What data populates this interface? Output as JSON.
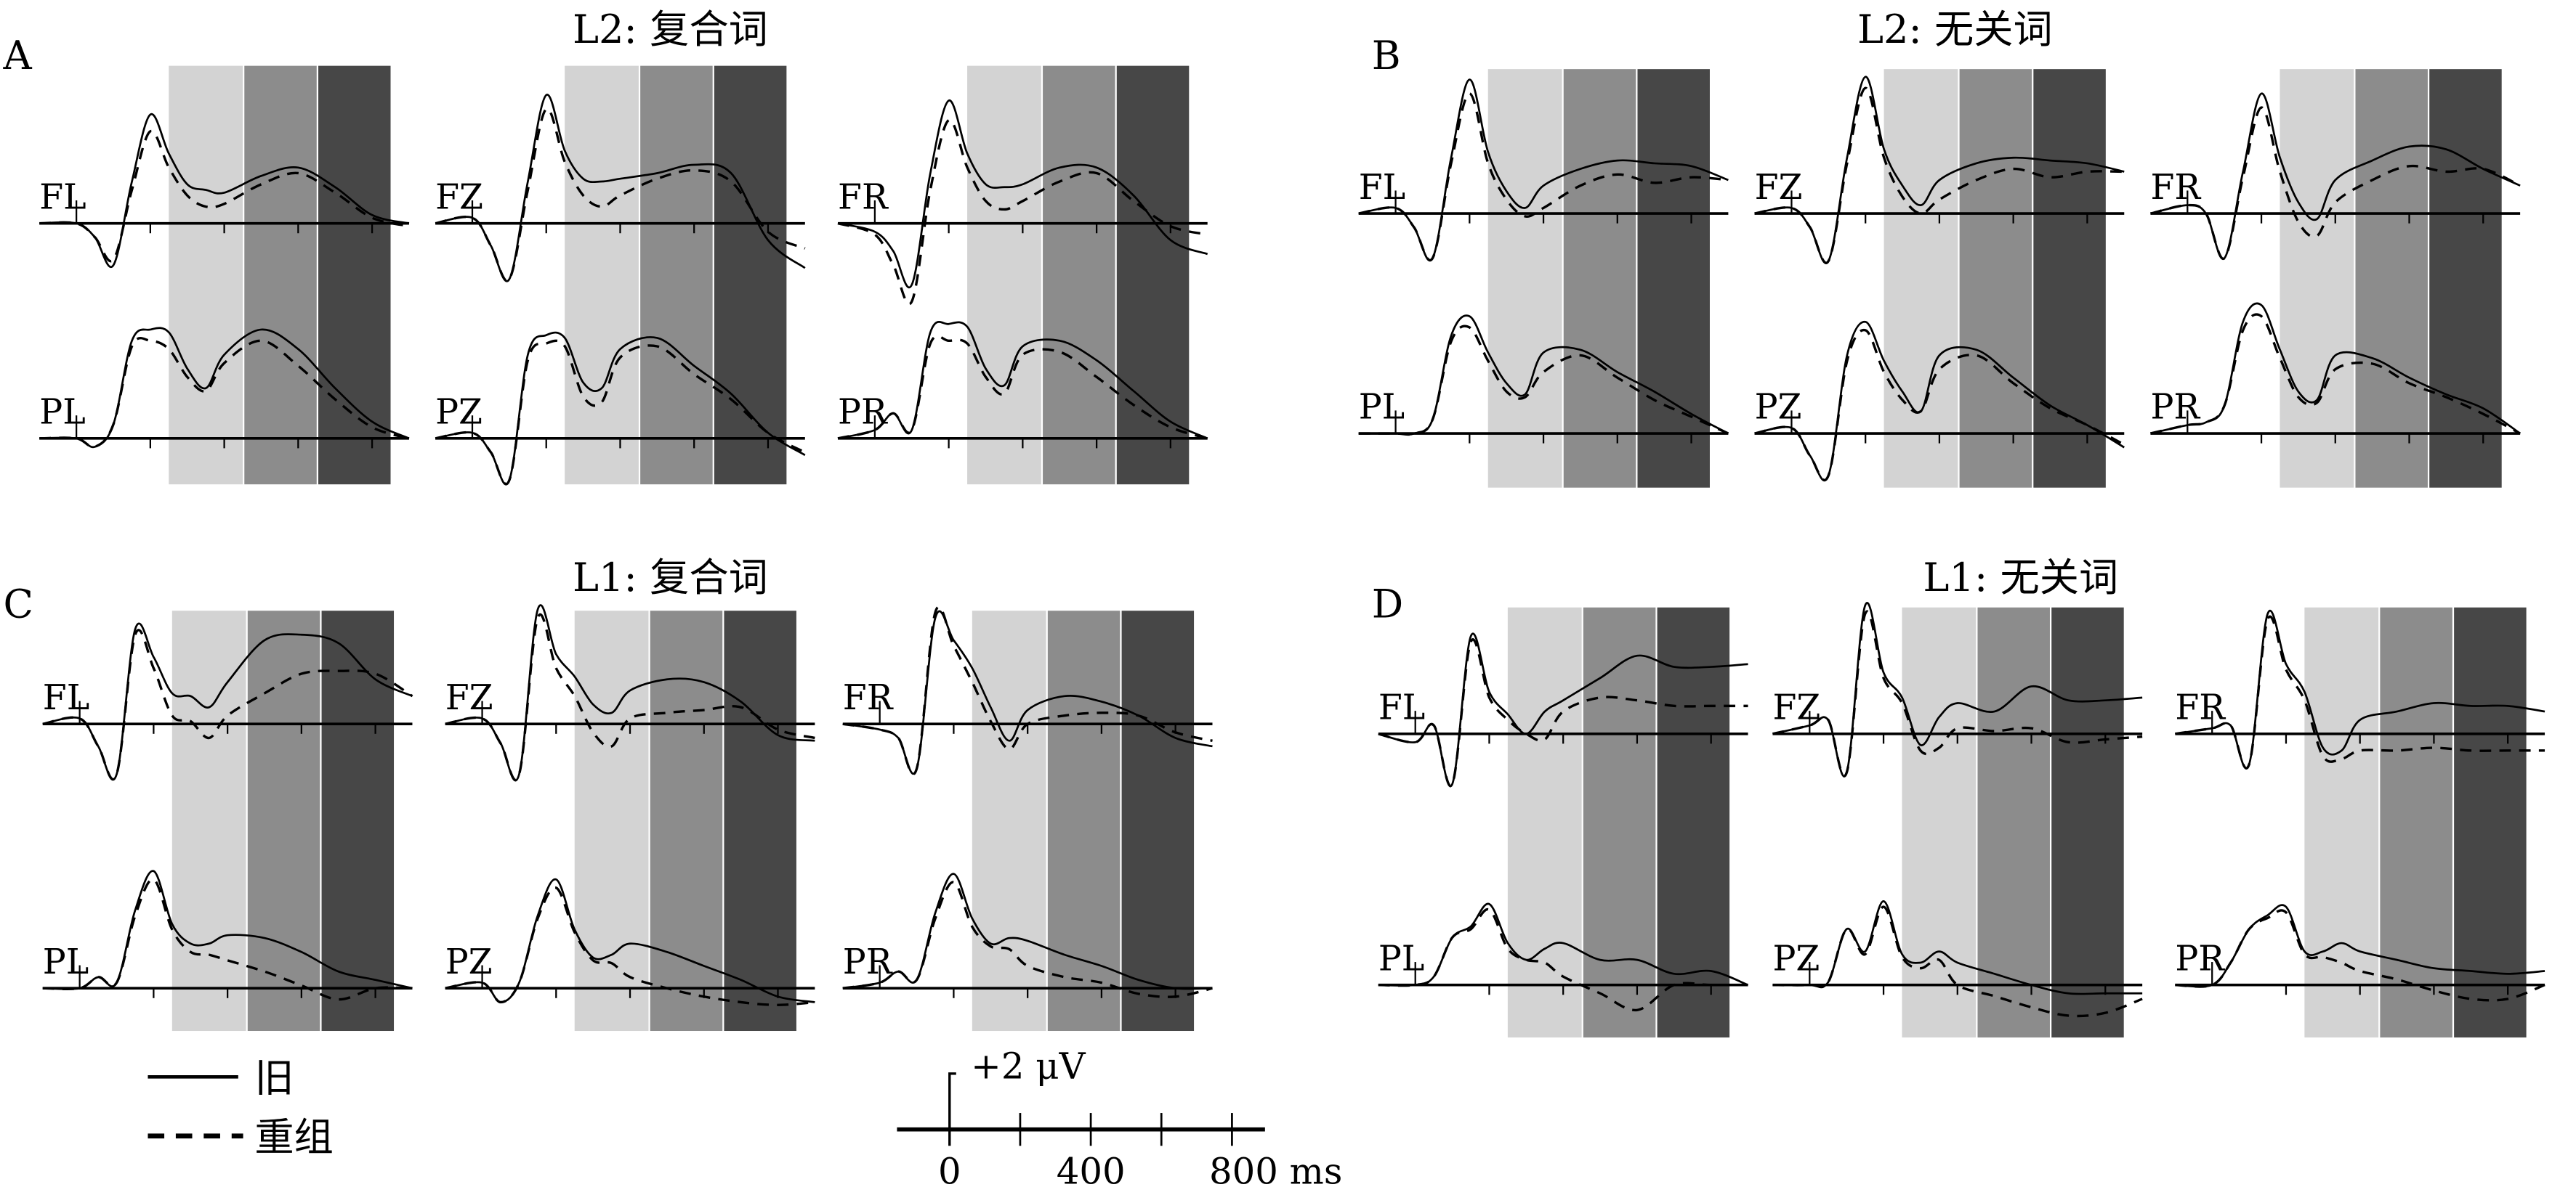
{
  "chart_data": {
    "type": "line",
    "x_unit": "ms",
    "y_unit": "μV",
    "xlim": [
      -100,
      900
    ],
    "time_ms": [
      -100,
      0,
      50,
      100,
      150,
      200,
      250,
      300,
      350,
      400,
      500,
      600,
      700,
      800,
      900
    ],
    "windows_ms": [
      [
        250,
        450
      ],
      [
        450,
        650
      ],
      [
        650,
        850
      ]
    ],
    "window_colors": [
      "#d3d3d3",
      "#8c8c8c",
      "#474747"
    ],
    "legend": [
      {
        "label": "旧",
        "style": "solid"
      },
      {
        "label": "重组",
        "style": "dashed"
      }
    ],
    "scale_bar": {
      "amplitude_label": "+2 μV",
      "amplitude_uv": 2,
      "ticks_ms": [
        0,
        200,
        400,
        600,
        800
      ],
      "tick_labels": [
        "0",
        "400",
        "800 ms"
      ]
    },
    "panels": [
      {
        "letter": "A",
        "title": "L2: 复合词",
        "electrodes": [
          {
            "name": "FL",
            "old": [
              0,
              0,
              -0.5,
              -1.5,
              1.5,
              3.9,
              2.5,
              1.4,
              1.2,
              1.1,
              1.7,
              2.0,
              1.3,
              0.3,
              0
            ],
            "recombined": [
              0,
              0,
              -0.5,
              -1.3,
              1.2,
              3.3,
              2.0,
              1.0,
              0.6,
              0.7,
              1.4,
              1.8,
              1.1,
              0.2,
              -0.1
            ]
          },
          {
            "name": "FZ",
            "old": [
              0,
              0.2,
              -0.8,
              -2.0,
              1.5,
              4.6,
              2.6,
              1.6,
              1.5,
              1.6,
              1.8,
              2.1,
              1.8,
              -0.6,
              -1.6
            ],
            "recombined": [
              0,
              0.2,
              -0.8,
              -2.0,
              1.2,
              4.1,
              2.2,
              1.0,
              0.6,
              1.0,
              1.6,
              1.9,
              1.5,
              -0.3,
              -0.9
            ]
          },
          {
            "name": "FR",
            "old": [
              0,
              -0.3,
              -1.0,
              -2.2,
              1.8,
              4.4,
              2.5,
              1.4,
              1.3,
              1.4,
              2.0,
              2.0,
              1.0,
              -0.6,
              -1.1
            ],
            "recombined": [
              0,
              -0.4,
              -1.5,
              -2.8,
              1.2,
              3.7,
              2.0,
              0.8,
              0.5,
              0.8,
              1.5,
              1.8,
              0.8,
              -0.1,
              -0.4
            ]
          },
          {
            "name": "PL",
            "old": [
              0,
              0,
              -0.3,
              0.5,
              3.5,
              3.9,
              3.8,
              2.5,
              1.8,
              3.0,
              3.9,
              3.2,
              1.8,
              0.6,
              0
            ],
            "recombined": [
              0,
              0,
              -0.3,
              0.5,
              3.3,
              3.5,
              3.2,
              2.2,
              1.7,
              2.7,
              3.5,
              2.6,
              1.4,
              0.4,
              0
            ]
          },
          {
            "name": "PZ",
            "old": [
              0,
              0.2,
              -0.5,
              -1.5,
              3.0,
              3.7,
              3.6,
              2.0,
              1.8,
              3.2,
              3.6,
              2.6,
              1.6,
              0.2,
              -0.6
            ],
            "recombined": [
              0,
              0.2,
              -0.5,
              -1.5,
              2.8,
              3.4,
              3.3,
              1.5,
              1.3,
              2.9,
              3.3,
              2.3,
              1.4,
              0.2,
              -0.5
            ]
          },
          {
            "name": "PR",
            "old": [
              0,
              0.3,
              0.9,
              0.3,
              3.8,
              4.1,
              4.0,
              2.5,
              1.9,
              3.3,
              3.5,
              2.8,
              1.7,
              0.6,
              0
            ],
            "recombined": [
              0,
              0.3,
              0.9,
              0.3,
              3.4,
              3.5,
              3.4,
              2.2,
              1.6,
              3.0,
              3.1,
              2.2,
              1.2,
              0.4,
              0
            ]
          }
        ]
      },
      {
        "letter": "B",
        "title": "L2: 无关词",
        "electrodes": [
          {
            "name": "FL",
            "old": [
              0,
              0.2,
              -0.5,
              -1.6,
              2.0,
              4.8,
              2.2,
              0.8,
              0.2,
              1.0,
              1.6,
              1.9,
              1.8,
              1.7,
              1.2
            ],
            "recombined": [
              0,
              0.2,
              -0.5,
              -1.6,
              1.8,
              4.3,
              1.8,
              0.5,
              -0.1,
              0.2,
              1.0,
              1.4,
              1.1,
              1.3,
              1.2
            ]
          },
          {
            "name": "FZ",
            "old": [
              0,
              0.2,
              -0.5,
              -1.7,
              2.0,
              4.9,
              2.3,
              1.0,
              0.3,
              1.2,
              1.8,
              2.0,
              1.9,
              1.8,
              1.5
            ],
            "recombined": [
              0,
              0.2,
              -0.5,
              -1.7,
              1.8,
              4.5,
              2.0,
              0.6,
              0,
              0.5,
              1.2,
              1.6,
              1.3,
              1.5,
              1.5
            ]
          },
          {
            "name": "FR",
            "old": [
              0,
              0.3,
              0,
              -1.6,
              1.5,
              4.3,
              2.0,
              0.4,
              -0.2,
              1.2,
              1.9,
              2.4,
              2.3,
              1.6,
              1.0
            ],
            "recombined": [
              0,
              0.3,
              0,
              -1.6,
              1.3,
              3.8,
              1.5,
              -0.3,
              -0.8,
              0.4,
              1.2,
              1.7,
              1.5,
              1.6,
              1.0
            ]
          },
          {
            "name": "PL",
            "old": [
              0,
              0,
              0,
              0.5,
              3.5,
              4.2,
              2.9,
              1.8,
              1.4,
              2.9,
              3.0,
              2.2,
              1.5,
              0.7,
              0
            ],
            "recombined": [
              0,
              0,
              0,
              0.5,
              3.3,
              3.8,
              2.6,
              1.5,
              1.3,
              2.2,
              2.8,
              2.0,
              1.2,
              0.6,
              0
            ]
          },
          {
            "name": "PZ",
            "old": [
              0,
              0.2,
              -0.8,
              -1.5,
              2.8,
              4.0,
              2.6,
              1.5,
              0.8,
              2.8,
              3.0,
              2.0,
              1.0,
              0.3,
              -0.5
            ],
            "recombined": [
              0,
              0.2,
              -0.8,
              -1.5,
              2.6,
              3.7,
              2.2,
              1.2,
              0.8,
              2.3,
              2.8,
              1.8,
              0.9,
              0.3,
              -0.4
            ]
          },
          {
            "name": "PR",
            "old": [
              0,
              0.3,
              0.4,
              1.0,
              4.0,
              4.6,
              3.0,
              1.5,
              1.2,
              2.8,
              2.7,
              2.0,
              1.4,
              0.9,
              0
            ],
            "recombined": [
              0,
              0.3,
              0.4,
              1.0,
              3.7,
              4.2,
              2.7,
              1.3,
              1.1,
              2.3,
              2.5,
              1.8,
              1.3,
              0.7,
              0
            ]
          }
        ]
      },
      {
        "letter": "C",
        "title": "L1: 复合词",
        "electrodes": [
          {
            "name": "FL",
            "old": [
              0,
              0.2,
              -0.8,
              -1.8,
              3.4,
              2.4,
              1.1,
              1.0,
              0.6,
              1.5,
              3.0,
              3.2,
              2.9,
              1.6,
              1.0
            ],
            "recombined": [
              0,
              0.2,
              -0.8,
              -1.8,
              3.2,
              2.0,
              0.3,
              0.1,
              -0.5,
              0.3,
              1.1,
              1.8,
              1.9,
              1.8,
              1.0
            ]
          },
          {
            "name": "FZ",
            "old": [
              0,
              0.2,
              -0.7,
              -1.8,
              4.1,
              2.5,
              1.7,
              0.7,
              0.4,
              1.2,
              1.6,
              1.5,
              0.8,
              -0.4,
              -0.6
            ],
            "recombined": [
              0,
              0.2,
              -0.7,
              -1.8,
              3.8,
              2.0,
              1.0,
              -0.3,
              -0.8,
              0.2,
              0.4,
              0.5,
              0.6,
              -0.2,
              -0.5
            ]
          },
          {
            "name": "FR",
            "old": [
              0,
              -0.2,
              -0.5,
              -1.6,
              3.8,
              3.0,
              2.0,
              0.6,
              -0.6,
              0.5,
              1.0,
              0.8,
              0.3,
              -0.5,
              -0.8
            ],
            "recombined": [
              0,
              -0.2,
              -0.5,
              -1.6,
              4.0,
              2.8,
              1.5,
              0.1,
              -0.9,
              0,
              0.3,
              0.4,
              0.3,
              -0.3,
              -0.6
            ]
          },
          {
            "name": "PL",
            "old": [
              0,
              0,
              0.4,
              0.2,
              2.8,
              4.2,
              2.3,
              1.6,
              1.6,
              1.9,
              1.8,
              1.3,
              0.6,
              0.3,
              0
            ],
            "recombined": [
              0,
              0,
              0.4,
              0.2,
              2.6,
              3.9,
              2.1,
              1.3,
              1.2,
              1.0,
              0.6,
              0.1,
              -0.4,
              0,
              0
            ]
          },
          {
            "name": "PZ",
            "old": [
              0,
              0.2,
              -0.5,
              0.2,
              2.6,
              3.9,
              2.1,
              1.1,
              1.2,
              1.6,
              1.3,
              0.8,
              0.3,
              -0.3,
              -0.5
            ],
            "recombined": [
              0,
              0.2,
              -0.5,
              0.2,
              2.5,
              3.6,
              2.0,
              1.0,
              0.9,
              0.4,
              0,
              -0.3,
              -0.5,
              -0.6,
              -0.5
            ]
          },
          {
            "name": "PR",
            "old": [
              0,
              0.2,
              0.6,
              0.3,
              2.7,
              4.1,
              2.5,
              1.6,
              1.8,
              1.7,
              1.2,
              0.8,
              0.3,
              0,
              0
            ],
            "recombined": [
              0,
              0.2,
              0.6,
              0.3,
              2.5,
              3.8,
              2.2,
              1.5,
              1.4,
              0.8,
              0.4,
              0.2,
              -0.2,
              -0.3,
              0
            ]
          }
        ]
      },
      {
        "letter": "D",
        "title": "L1: 无关词",
        "electrodes": [
          {
            "name": "FL",
            "old": [
              0,
              -0.3,
              0.3,
              -1.8,
              3.5,
              1.5,
              0.7,
              0.0,
              0.8,
              1.2,
              2.0,
              2.8,
              2.4,
              2.4,
              2.5
            ],
            "recombined": [
              0,
              -0.3,
              0.3,
              -1.8,
              3.3,
              1.3,
              0.5,
              0.0,
              -0.2,
              0.8,
              1.3,
              1.2,
              1.0,
              1.0,
              1.0
            ]
          },
          {
            "name": "FZ",
            "old": [
              0,
              0.3,
              0.5,
              -1.4,
              4.6,
              2.2,
              1.3,
              -0.4,
              0.6,
              1.1,
              0.8,
              1.7,
              1.2,
              1.2,
              1.3
            ],
            "recombined": [
              0,
              0.3,
              0.5,
              -1.4,
              4.3,
              2.0,
              1.1,
              -0.6,
              -0.5,
              0.2,
              0.1,
              0.2,
              -0.3,
              -0.2,
              -0.1
            ]
          },
          {
            "name": "FR",
            "old": [
              0,
              0.2,
              0.3,
              -1.1,
              4.3,
              2.5,
              1.5,
              -0.5,
              -0.6,
              0.5,
              0.8,
              1.1,
              1.0,
              1.0,
              0.8
            ],
            "recombined": [
              0,
              0.2,
              0.3,
              -1.1,
              4.1,
              2.3,
              1.2,
              -0.8,
              -0.9,
              -0.6,
              -0.6,
              -0.5,
              -0.6,
              -0.6,
              -0.6
            ]
          },
          {
            "name": "PL",
            "old": [
              0,
              0,
              0.3,
              1.7,
              2.1,
              2.9,
              1.5,
              0.9,
              1.3,
              1.5,
              0.9,
              0.9,
              0.4,
              0.5,
              0
            ],
            "recombined": [
              0,
              0,
              0.3,
              1.7,
              2.0,
              2.7,
              1.3,
              0.9,
              0.8,
              0.3,
              -0.3,
              -0.9,
              0,
              0,
              0
            ]
          },
          {
            "name": "PZ",
            "old": [
              0,
              0,
              0.1,
              2.0,
              1.2,
              3.0,
              1.1,
              0.8,
              1.2,
              0.8,
              0.4,
              0,
              -0.3,
              -0.3,
              -0.3
            ],
            "recombined": [
              0,
              0,
              0.1,
              2.0,
              1.1,
              2.8,
              1.0,
              0.6,
              0.9,
              0,
              -0.4,
              -0.8,
              -1.1,
              -1.0,
              -0.5
            ]
          },
          {
            "name": "PR",
            "old": [
              0,
              0,
              0.8,
              2.0,
              2.5,
              2.8,
              1.2,
              1.2,
              1.5,
              1.2,
              0.9,
              0.6,
              0.5,
              0.4,
              0.5
            ],
            "recombined": [
              0,
              0,
              0.8,
              2.0,
              2.4,
              2.6,
              1.1,
              1.0,
              0.8,
              0.5,
              0.2,
              -0.2,
              -0.5,
              -0.5,
              0
            ]
          }
        ]
      }
    ]
  }
}
